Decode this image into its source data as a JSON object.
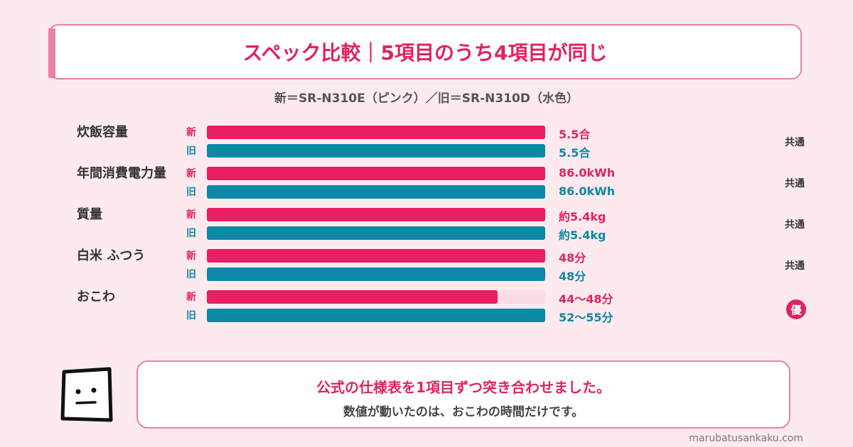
{
  "title": "スペック比較｜5項目のうち4項目が同じ",
  "subtitle": "新＝SR-N310E（ピンク）／旧＝SR-N310D（水色）",
  "colors": {
    "new": "#e91e63",
    "old": "#0b89a6",
    "accent": "#ee7fa5"
  },
  "chart_data": {
    "type": "bar",
    "orientation": "horizontal",
    "title": "スペック比較｜5項目のうち4項目が同じ",
    "subtitle": "新＝SR-N310E（ピンク）／旧＝SR-N310D（水色）",
    "categories": [
      "炊飯容量",
      "年間消費電力量",
      "質量",
      "白米 ふつう",
      "おこわ"
    ],
    "series_tags": {
      "new": "新",
      "old": "旧"
    },
    "items": [
      {
        "label": "炊飯容量",
        "new_value": 5.5,
        "old_value": 5.5,
        "new_text": "5.5合",
        "old_text": "5.5合",
        "verdict": "共通"
      },
      {
        "label": "年間消費電力量",
        "new_value": 86.0,
        "old_value": 86.0,
        "new_text": "86.0kWh",
        "old_text": "86.0kWh",
        "verdict": "共通"
      },
      {
        "label": "質量",
        "new_value": 5.4,
        "old_value": 5.4,
        "new_text": "約5.4kg",
        "old_text": "約5.4kg",
        "verdict": "共通"
      },
      {
        "label": "白米 ふつう",
        "new_value": 48,
        "old_value": 48,
        "new_text": "48分",
        "old_text": "48分",
        "verdict": "共通"
      },
      {
        "label": "おこわ",
        "new_value": 46,
        "old_value": 53.5,
        "new_text": "44〜48分",
        "old_text": "52〜55分",
        "verdict": "優",
        "verdict_badge": true
      }
    ],
    "grid": false,
    "legend": "none"
  },
  "bubble": {
    "line1": "公式の仕様表を1項目ずつ突き合わせました。",
    "line2": "数値が動いたのは、おこわの時間だけです。"
  },
  "mascot_icon": "square-face-icon",
  "site": "marubatusankaku.com"
}
